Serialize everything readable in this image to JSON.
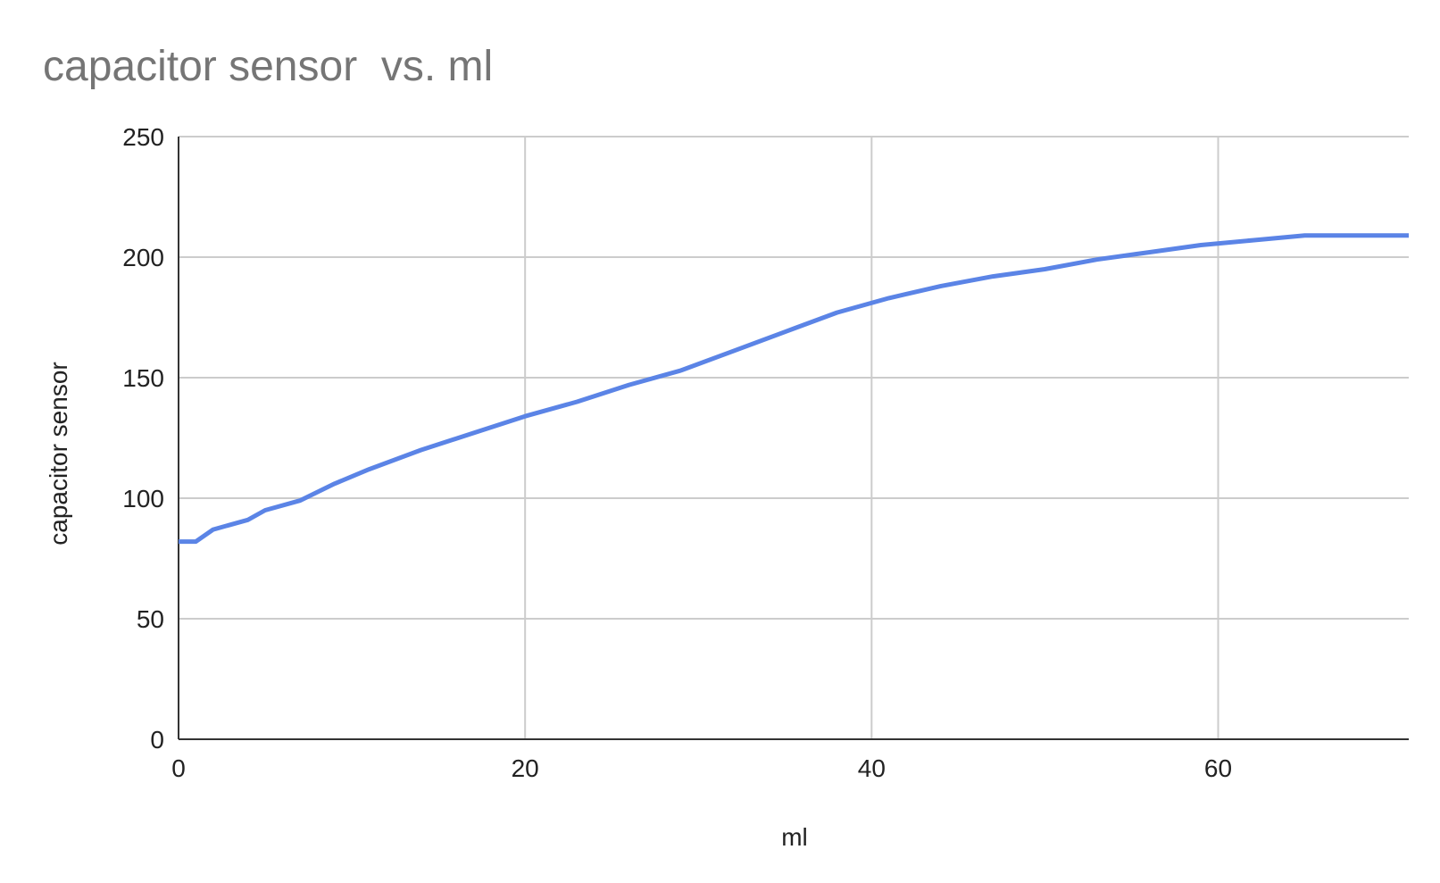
{
  "chart_data": {
    "type": "line",
    "title": "capacitor sensor  vs. ml",
    "xlabel": "ml",
    "ylabel": "capacitor sensor",
    "xlim": [
      0,
      71
    ],
    "ylim": [
      0,
      250
    ],
    "x_ticks": [
      0,
      20,
      40,
      60
    ],
    "y_ticks": [
      0,
      50,
      100,
      150,
      200,
      250
    ],
    "grid": true,
    "legend": "none",
    "series": [
      {
        "color": "#5b84e6",
        "x": [
          0,
          1,
          2,
          4,
          5,
          7,
          9,
          11,
          14,
          17,
          20,
          23,
          26,
          29,
          32,
          35,
          38,
          41,
          44,
          47,
          50,
          53,
          56,
          59,
          62,
          65,
          68,
          71
        ],
        "y": [
          82,
          82,
          87,
          91,
          95,
          99,
          106,
          112,
          120,
          127,
          134,
          140,
          147,
          153,
          161,
          169,
          177,
          183,
          188,
          192,
          195,
          199,
          202,
          205,
          207,
          209,
          209,
          209
        ]
      }
    ]
  }
}
